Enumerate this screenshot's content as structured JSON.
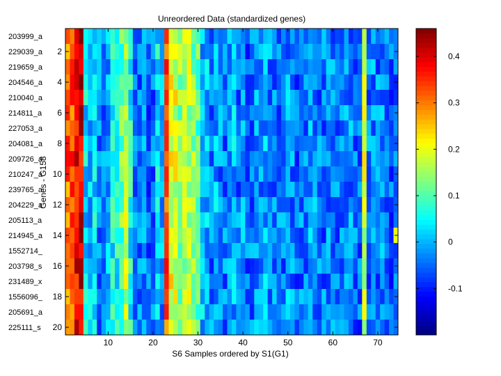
{
  "chart_data": {
    "type": "heatmap",
    "title": "Unreordered Data (standardized genes)",
    "xlabel": "S6 Samples ordered by S1(G1)",
    "ylabel": "Genes - G158",
    "x_ticks": [
      10,
      20,
      30,
      40,
      50,
      60,
      70
    ],
    "y_ticks": [
      2,
      4,
      6,
      8,
      10,
      12,
      14,
      16,
      18,
      20
    ],
    "x_range": [
      1,
      74
    ],
    "y_range": [
      1,
      20
    ],
    "row_labels": [
      "203999_a",
      "229039_a",
      "219659_a",
      "204546_a",
      "210040_a",
      "214811_a",
      "227053_a",
      "204081_a",
      "209726_a",
      "210247_a",
      "239765_a",
      "204229_a",
      "205113_a",
      "214945_a",
      "1552714_",
      "203798_s",
      "231489_x",
      "1556096_",
      "205691_a",
      "225111_s"
    ],
    "colorbar": {
      "min": -0.2,
      "max": 0.46,
      "ticks": [
        -0.1,
        0,
        0.1,
        0.2,
        0.3,
        0.4
      ],
      "colormap": "jet"
    },
    "column_profile_approx": [
      0.31,
      0.32,
      0.38,
      0.4,
      0.03,
      0.01,
      0.04,
      -0.03,
      -0.03,
      0.0,
      0.05,
      0.06,
      0.11,
      0.16,
      0.06,
      -0.04,
      -0.04,
      -0.02,
      -0.05,
      -0.04,
      0.03,
      -0.02,
      0.32,
      0.2,
      0.19,
      0.14,
      0.15,
      0.16,
      0.13,
      0.1,
      0.0,
      0.0,
      -0.04,
      0.0,
      -0.03,
      -0.04,
      -0.03,
      0.0,
      -0.04,
      0.0,
      -0.05,
      -0.04,
      -0.03,
      -0.02,
      0.0,
      -0.03,
      -0.04,
      -0.04,
      -0.04,
      -0.02,
      -0.03,
      -0.05,
      -0.04,
      -0.03,
      -0.01,
      -0.02,
      -0.04,
      -0.04,
      -0.03,
      -0.03,
      -0.04,
      -0.03,
      -0.03,
      -0.03,
      -0.04,
      -0.05,
      0.18,
      -0.04,
      -0.03,
      -0.04,
      -0.03,
      -0.04,
      -0.06,
      -0.06
    ]
  }
}
